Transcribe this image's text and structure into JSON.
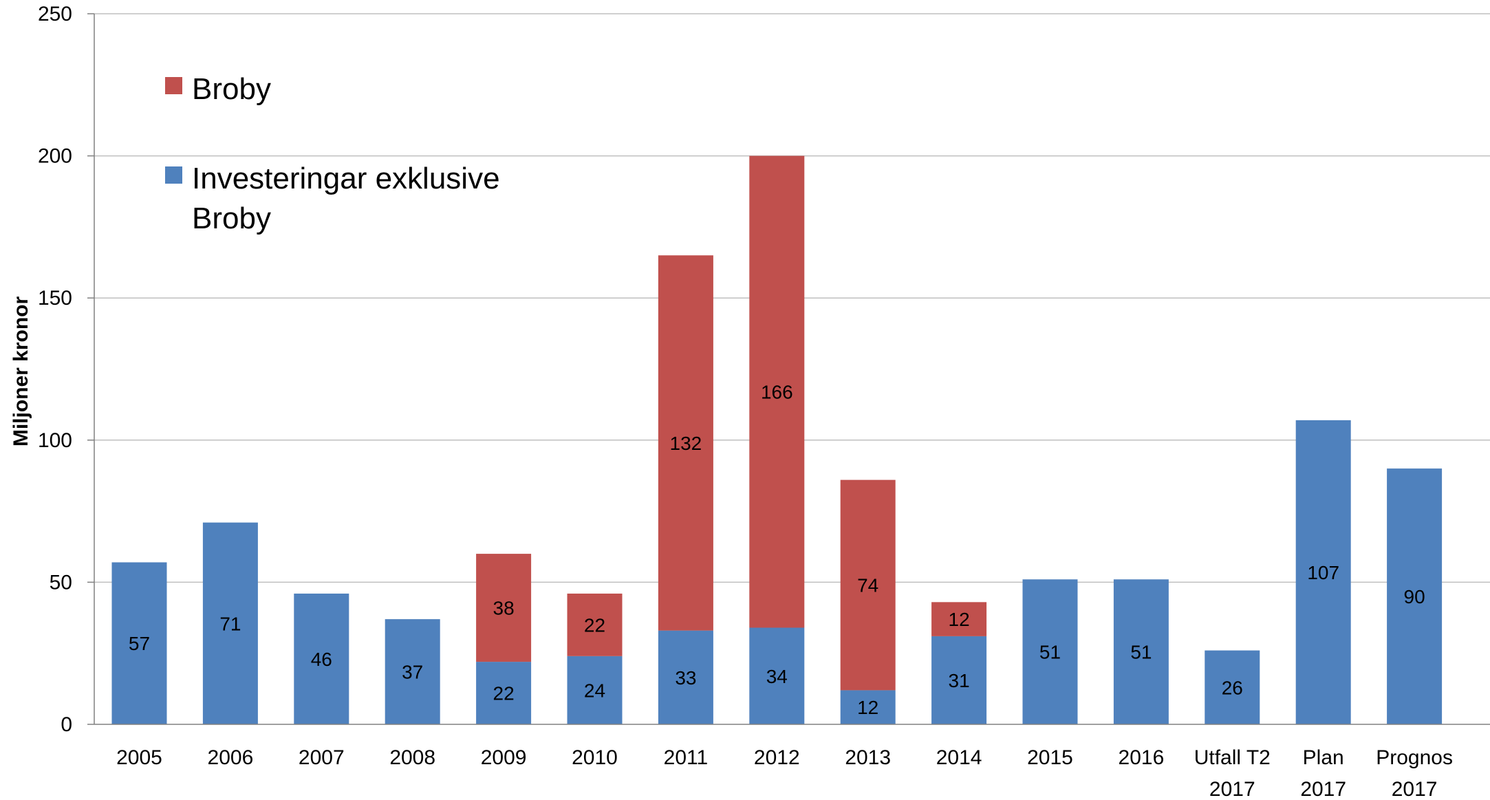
{
  "chart_data": {
    "type": "bar",
    "stacked": true,
    "title": "",
    "xlabel": "",
    "ylabel": "Miljoner kronor",
    "ylim": [
      0,
      250
    ],
    "yticks": [
      0,
      50,
      100,
      150,
      200,
      250
    ],
    "grid": true,
    "legend_position": "top-left",
    "categories": [
      [
        "2005"
      ],
      [
        "2006"
      ],
      [
        "2007"
      ],
      [
        "2008"
      ],
      [
        "2009"
      ],
      [
        "2010"
      ],
      [
        "2011"
      ],
      [
        "2012"
      ],
      [
        "2013"
      ],
      [
        "2014"
      ],
      [
        "2015"
      ],
      [
        "2016"
      ],
      [
        "Utfall T2",
        "2017"
      ],
      [
        "Plan",
        "2017"
      ],
      [
        "Prognos",
        "2017"
      ]
    ],
    "series": [
      {
        "name": "Investeringar exklusive Broby",
        "color": "#4f81bd",
        "values": [
          57,
          71,
          46,
          37,
          22,
          24,
          33,
          34,
          12,
          31,
          51,
          51,
          26,
          107,
          90
        ],
        "labels": [
          "57",
          "71",
          "46",
          "37",
          "22",
          "24",
          "33",
          "34",
          "12",
          "31",
          "51",
          "51",
          "26",
          "107",
          "90"
        ]
      },
      {
        "name": "Broby",
        "color": "#c0504d",
        "values": [
          0,
          0,
          0,
          0,
          38,
          22,
          132,
          166,
          74,
          12,
          0,
          0,
          0,
          0,
          0
        ],
        "labels": [
          "",
          "",
          "",
          "",
          "38",
          "22",
          "132",
          "166",
          "74",
          "12",
          "",
          "",
          "",
          "",
          ""
        ]
      }
    ],
    "legend": [
      {
        "lines": [
          "Broby"
        ],
        "series_index": 1
      },
      {
        "lines": [
          "Investeringar exklusive",
          "Broby"
        ],
        "series_index": 0
      }
    ]
  }
}
